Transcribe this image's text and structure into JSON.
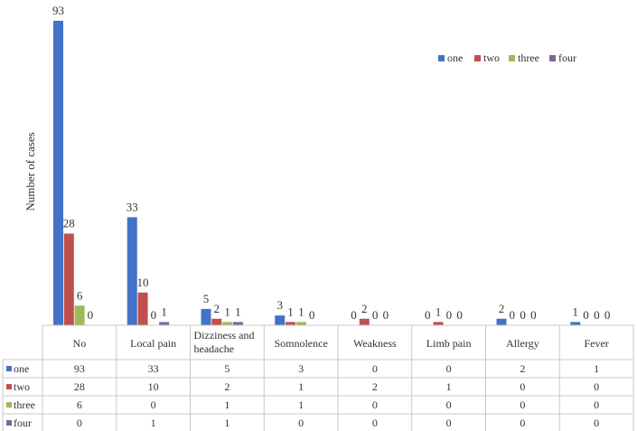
{
  "chart_data": {
    "type": "bar",
    "ylabel": "Number of cases",
    "categories": [
      [
        "No"
      ],
      [
        "Local pain"
      ],
      [
        "Dizziness and",
        "headache"
      ],
      [
        "Somnolence"
      ],
      [
        "Weakness"
      ],
      [
        "Limb pain"
      ],
      [
        "Allergy"
      ],
      [
        "Fever"
      ]
    ],
    "series": [
      {
        "name": "one",
        "color": "#4472C4",
        "values": [
          93,
          33,
          5,
          3,
          0,
          0,
          2,
          1
        ]
      },
      {
        "name": "two",
        "color": "#C0504D",
        "values": [
          28,
          10,
          2,
          1,
          2,
          1,
          0,
          0
        ]
      },
      {
        "name": "three",
        "color": "#9BBB59",
        "values": [
          6,
          0,
          1,
          1,
          0,
          0,
          0,
          0
        ]
      },
      {
        "name": "four",
        "color": "#8064A2",
        "values": [
          0,
          1,
          1,
          0,
          0,
          0,
          0,
          0
        ]
      }
    ],
    "ylim": [
      0,
      93
    ],
    "grid": false,
    "legend_position": "top-right",
    "data_table": true
  }
}
